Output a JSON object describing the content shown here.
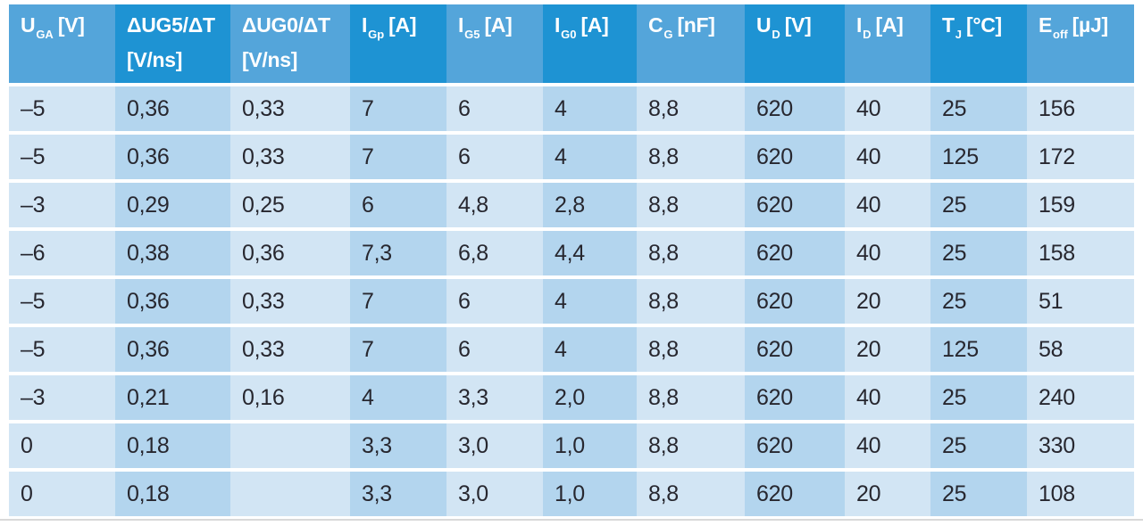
{
  "colors": {
    "header_light": "#54A5DA",
    "header_dark": "#1E93D3",
    "cell_light": "#D2E5F4",
    "cell_dark": "#B3D5EE",
    "header_text": "#FFFFFF",
    "body_text": "#27272F",
    "rule_color": "#D9D9D9"
  },
  "table": {
    "columns": [
      {
        "pre": "U",
        "sub": "GA",
        "post": "[V]",
        "line2": ""
      },
      {
        "pre": "ΔUG5/ΔT",
        "sub": "",
        "post": "",
        "line2": "[V/ns]"
      },
      {
        "pre": "ΔUG0/ΔT",
        "sub": "",
        "post": "",
        "line2": "[V/ns]"
      },
      {
        "pre": "I",
        "sub": "Gp",
        "post": "[A]",
        "line2": ""
      },
      {
        "pre": "I",
        "sub": "G5",
        "post": "[A]",
        "line2": ""
      },
      {
        "pre": "I",
        "sub": "G0",
        "post": "[A]",
        "line2": ""
      },
      {
        "pre": "C",
        "sub": "G",
        "post": "[nF]",
        "line2": ""
      },
      {
        "pre": "U",
        "sub": "D",
        "post": "[V]",
        "line2": ""
      },
      {
        "pre": "I",
        "sub": "D",
        "post": "[A]",
        "line2": ""
      },
      {
        "pre": "T",
        "sub": "J",
        "post": "[°C]",
        "line2": ""
      },
      {
        "pre": "E",
        "sub": "off",
        "post": "[µJ]",
        "line2": ""
      }
    ],
    "rows": [
      {
        "cells": [
          "–5",
          "0,36",
          "0,33",
          "7",
          "6",
          "4",
          "8,8",
          "620",
          "40",
          "25",
          "156"
        ]
      },
      {
        "cells": [
          "–5",
          "0,36",
          "0,33",
          "7",
          "6",
          "4",
          "8,8",
          "620",
          "40",
          "125",
          "172"
        ]
      },
      {
        "cells": [
          "–3",
          "0,29",
          "0,25",
          "6",
          "4,8",
          "2,8",
          "8,8",
          "620",
          "40",
          "25",
          "159"
        ]
      },
      {
        "cells": [
          "–6",
          "0,38",
          "0,36",
          "7,3",
          "6,8",
          "4,4",
          "8,8",
          "620",
          "40",
          "25",
          "158"
        ]
      },
      {
        "cells": [
          "–5",
          "0,36",
          "0,33",
          "7",
          "6",
          "4",
          "8,8",
          "620",
          "20",
          "25",
          "51"
        ]
      },
      {
        "cells": [
          "–5",
          "0,36",
          "0,33",
          "7",
          "6",
          "4",
          "8,8",
          "620",
          "20",
          "125",
          "58"
        ]
      },
      {
        "cells": [
          "–3",
          "0,21",
          "0,16",
          "4",
          "3,3",
          "2,0",
          "8,8",
          "620",
          "40",
          "25",
          "240"
        ]
      },
      {
        "cells": [
          "0",
          "0,18",
          "",
          "3,3",
          "3,0",
          "1,0",
          "8,8",
          "620",
          "40",
          "25",
          "330"
        ]
      },
      {
        "cells": [
          "0",
          "0,18",
          "",
          "3,3",
          "3,0",
          "1,0",
          "8,8",
          "620",
          "20",
          "25",
          "108"
        ]
      }
    ]
  }
}
